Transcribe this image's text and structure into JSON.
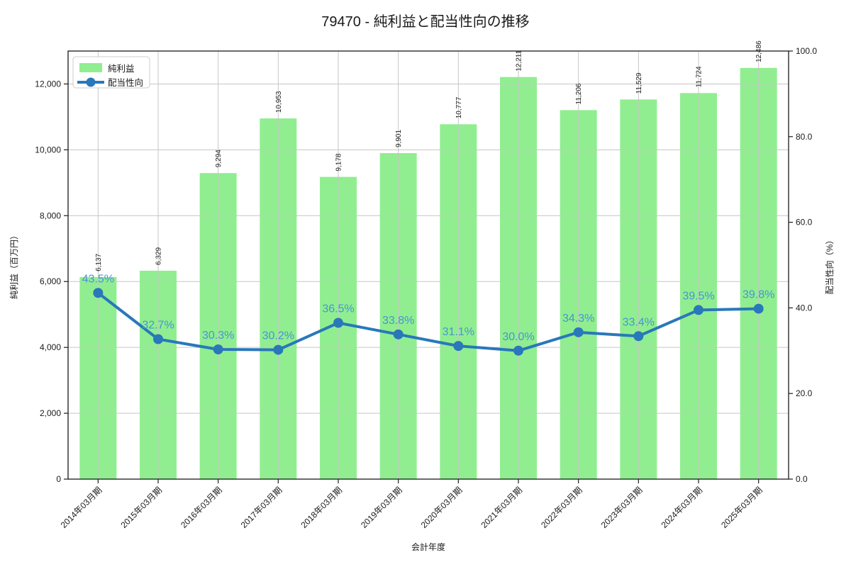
{
  "title": "79470 - 純利益と配当性向の推移",
  "colors": {
    "bar": "#90ee90",
    "line": "#2878ba",
    "percent_label": "#4696d2",
    "grid": "#c6c6c6",
    "frame": "#1a1a1a",
    "text": "#1a1a1a",
    "legend_border": "#cccccc",
    "background": "#ffffff"
  },
  "legend": {
    "items": [
      {
        "label": "純利益",
        "swatch": "bar-swatch"
      },
      {
        "label": "配当性向",
        "swatch": "line-swatch"
      }
    ]
  },
  "chart_data": {
    "type": "bar+line",
    "title": "79470 - 純利益と配当性向の推移",
    "xlabel": "会計年度",
    "ylabel_left": "純利益（百万円）",
    "ylabel_right": "配当性向（%）",
    "categories": [
      "2014年03月期",
      "2015年03月期",
      "2016年03月期",
      "2017年03月期",
      "2018年03月期",
      "2019年03月期",
      "2020年03月期",
      "2021年03月期",
      "2022年03月期",
      "2023年03月期",
      "2024年03月期",
      "2025年03月期"
    ],
    "series": [
      {
        "name": "純利益",
        "type": "bar",
        "axis": "left",
        "values": [
          6137,
          6329,
          9294,
          10953,
          9178,
          9901,
          10777,
          12211,
          11206,
          11529,
          11724,
          12486
        ],
        "labels": [
          "6,137",
          "6,329",
          "9,294",
          "10,953",
          "9,178",
          "9,901",
          "10,777",
          "12,211",
          "11,206",
          "11,529",
          "11,724",
          "12,486"
        ]
      },
      {
        "name": "配当性向",
        "type": "line",
        "axis": "right",
        "values": [
          43.5,
          32.7,
          30.3,
          30.2,
          36.5,
          33.8,
          31.1,
          30.0,
          34.3,
          33.4,
          39.5,
          39.8
        ],
        "labels": [
          "43.5%",
          "32.7%",
          "30.3%",
          "30.2%",
          "36.5%",
          "33.8%",
          "31.1%",
          "30.0%",
          "34.3%",
          "33.4%",
          "39.5%",
          "39.8%"
        ]
      }
    ],
    "ylim_left": [
      0,
      13000
    ],
    "ylim_right": [
      0,
      100
    ],
    "yticks_left": [
      0,
      2000,
      4000,
      6000,
      8000,
      10000,
      12000
    ],
    "ytick_labels_left": [
      "0",
      "2,000",
      "4,000",
      "6,000",
      "8,000",
      "10,000",
      "12,000"
    ],
    "yticks_right": [
      0,
      20,
      40,
      60,
      80,
      100
    ],
    "ytick_labels_right": [
      "0.0",
      "20.0",
      "40.0",
      "60.0",
      "80.0",
      "100.0"
    ],
    "grid": true,
    "legend_position": "upper left"
  }
}
